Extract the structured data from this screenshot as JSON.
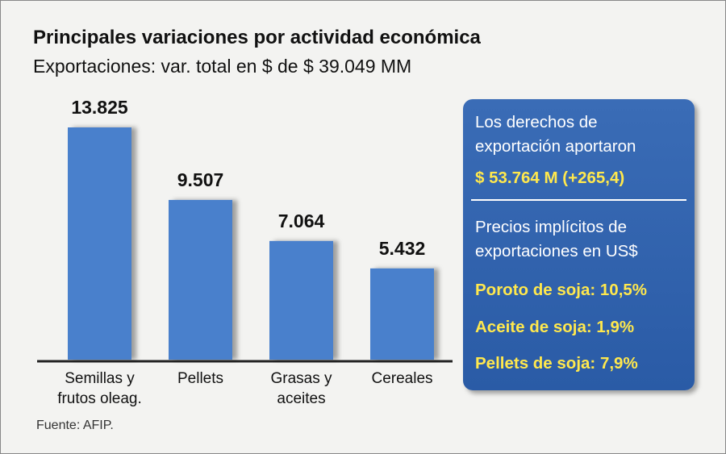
{
  "chart_data": {
    "type": "bar",
    "title": "Principales variaciones por actividad económica",
    "subtitle": "Exportaciones: var. total en $ de $ 39.049 MM",
    "categories": [
      "Semillas y\nfrutos oleag.",
      "Pellets",
      "Grasas y\naceites",
      "Cereales"
    ],
    "values": [
      13825,
      9507,
      7064,
      5432
    ],
    "value_labels": [
      "13.825",
      "9.507",
      "7.064",
      "5.432"
    ],
    "color": "#4a80cc",
    "source": "Fuente: AFIP."
  },
  "info_box": {
    "heading": "Los derechos de exportación aportaron",
    "highlight": "$ 53.764 M (+265,4)",
    "subheading": "Precios implícitos de exportaciones en US$",
    "items": [
      "Poroto de soja: 10,5%",
      "Aceite de soja: 1,9%",
      "Pellets de soja: 7,9%"
    ]
  }
}
